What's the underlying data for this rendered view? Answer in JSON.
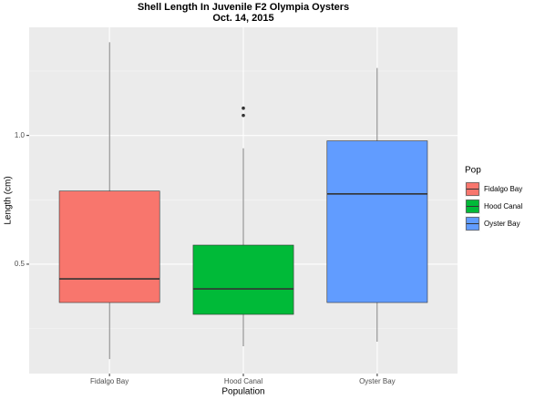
{
  "chart_data": {
    "type": "boxplot",
    "title": "Shell Length In Juvenile F2 Olympia Oysters",
    "subtitle": "Oct. 14, 2015",
    "x_label": "Population",
    "y_label": "Length (cm)",
    "categories": [
      "Fidalgo Bay",
      "Hood Canal",
      "Oyster Bay"
    ],
    "colors": [
      "#F8766D",
      "#00BA38",
      "#619CFF"
    ],
    "boxes": [
      {
        "whisker_low": 0.131,
        "q1": 0.351,
        "median": 0.443,
        "q3": 0.784,
        "whisker_high": 1.362,
        "outliers": []
      },
      {
        "whisker_low": 0.181,
        "q1": 0.305,
        "median": 0.404,
        "q3": 0.574,
        "whisker_high": 0.95,
        "outliers": [
          1.106,
          1.078
        ]
      },
      {
        "whisker_low": 0.199,
        "q1": 0.351,
        "median": 0.773,
        "q3": 0.979,
        "whisker_high": 1.262,
        "outliers": []
      }
    ],
    "ylim": [
      0.075,
      1.42
    ],
    "yticks": [
      0.5,
      {
        "value": 1,
        "label": "1.0"
      }
    ],
    "grid": true,
    "minor_grid": true,
    "legend_title": "Pop",
    "legend_position": "right"
  }
}
